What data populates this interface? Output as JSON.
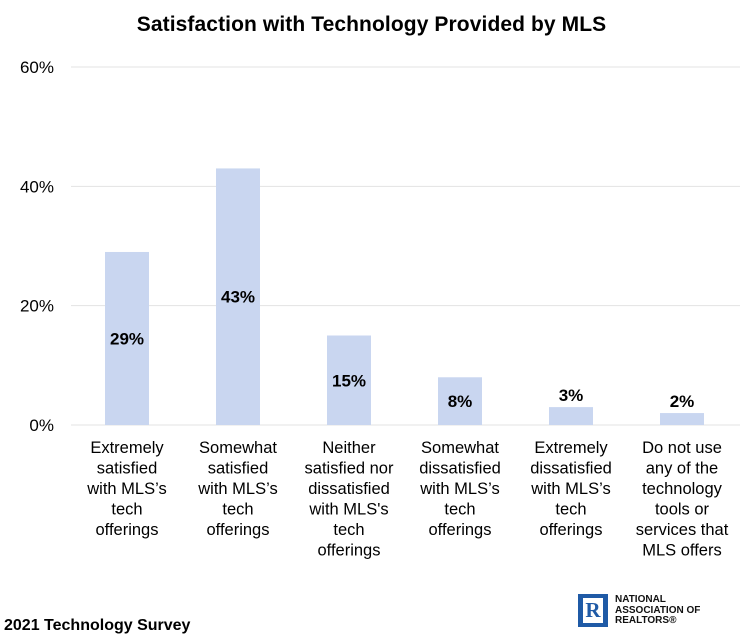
{
  "chart_data": {
    "type": "bar",
    "title": "Satisfaction with Technology Provided by MLS",
    "categories": [
      [
        "Extremely",
        "satisfied",
        "with MLS’s",
        "tech",
        "offerings"
      ],
      [
        "Somewhat",
        "satisfied",
        "with MLS’s",
        "tech",
        "offerings"
      ],
      [
        "Neither",
        "satisfied nor",
        "dissatisfied",
        "with MLS's",
        "tech",
        "offerings"
      ],
      [
        "Somewhat",
        "dissatisfied",
        "with MLS’s",
        "tech",
        "offerings"
      ],
      [
        "Extremely",
        "dissatisfied",
        "with MLS’s",
        "tech",
        "offerings"
      ],
      [
        "Do not use",
        "any of the",
        "technology",
        "tools or",
        "services that",
        "MLS offers"
      ]
    ],
    "values": [
      29,
      43,
      15,
      8,
      3,
      2
    ],
    "data_labels": [
      "29%",
      "43%",
      "15%",
      "8%",
      "3%",
      "2%"
    ],
    "ylim": [
      0,
      60
    ],
    "yticks": [
      0,
      20,
      40,
      60
    ],
    "ytick_labels": [
      "0%",
      "20%",
      "40%",
      "60%"
    ],
    "xlabel": "",
    "ylabel": "",
    "grid": true,
    "bar_color": "#c9d6f0",
    "grid_color": "#e3e3e3"
  },
  "footer": {
    "survey_label": "2021 Technology Survey"
  },
  "logo": {
    "letter": "R",
    "lines": [
      "NATIONAL",
      "ASSOCIATION OF",
      "REALTORS®"
    ],
    "color": "#1f5aa6"
  }
}
